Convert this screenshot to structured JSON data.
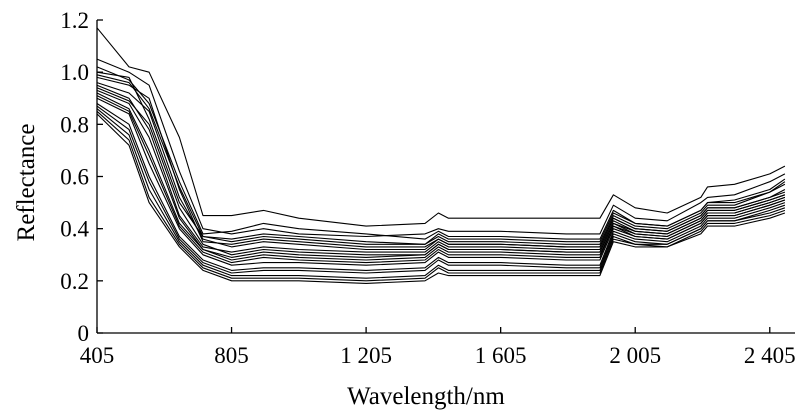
{
  "chart_data": {
    "type": "line",
    "title": "",
    "xlabel": "Wavelength/nm",
    "ylabel": "Reflectance",
    "xlim": [
      405,
      2480
    ],
    "ylim": [
      0,
      1.2
    ],
    "x_ticks": [
      405,
      805,
      1205,
      1605,
      2005,
      2405
    ],
    "x_tick_labels": [
      "405",
      "805",
      "1 205",
      "1 605",
      "2 005",
      "2 405"
    ],
    "y_ticks": [
      0,
      0.2,
      0.4,
      0.6,
      0.8,
      1.0,
      1.2
    ],
    "y_tick_labels": [
      "0",
      "0.2",
      "0.4",
      "0.6",
      "0.8",
      "1.0",
      "1.2"
    ],
    "grid": false,
    "legend": "none",
    "line_color": "#000000",
    "x": [
      405,
      500,
      560,
      650,
      720,
      805,
      900,
      1005,
      1205,
      1380,
      1420,
      1450,
      1605,
      1800,
      1900,
      1940,
      2005,
      2100,
      2200,
      2220,
      2300,
      2405,
      2450
    ],
    "series": [
      {
        "values": [
          1.17,
          1.02,
          1.0,
          0.75,
          0.45,
          0.45,
          0.47,
          0.44,
          0.41,
          0.42,
          0.46,
          0.44,
          0.44,
          0.44,
          0.44,
          0.53,
          0.48,
          0.46,
          0.52,
          0.56,
          0.57,
          0.61,
          0.64
        ]
      },
      {
        "values": [
          1.05,
          1.0,
          0.95,
          0.62,
          0.4,
          0.38,
          0.4,
          0.38,
          0.37,
          0.38,
          0.4,
          0.39,
          0.39,
          0.38,
          0.38,
          0.49,
          0.44,
          0.43,
          0.5,
          0.52,
          0.53,
          0.58,
          0.61
        ]
      },
      {
        "values": [
          1.0,
          0.98,
          0.82,
          0.5,
          0.37,
          0.36,
          0.38,
          0.37,
          0.35,
          0.34,
          0.37,
          0.35,
          0.35,
          0.34,
          0.34,
          0.45,
          0.41,
          0.4,
          0.46,
          0.49,
          0.49,
          0.54,
          0.58
        ]
      },
      {
        "values": [
          0.98,
          0.95,
          0.9,
          0.55,
          0.35,
          0.34,
          0.36,
          0.35,
          0.33,
          0.33,
          0.36,
          0.34,
          0.34,
          0.33,
          0.33,
          0.44,
          0.4,
          0.39,
          0.45,
          0.48,
          0.48,
          0.52,
          0.55
        ]
      },
      {
        "values": [
          0.95,
          0.9,
          0.78,
          0.45,
          0.33,
          0.31,
          0.33,
          0.32,
          0.31,
          0.31,
          0.35,
          0.33,
          0.33,
          0.32,
          0.32,
          0.43,
          0.39,
          0.38,
          0.44,
          0.47,
          0.47,
          0.51,
          0.53
        ]
      },
      {
        "values": [
          0.92,
          0.86,
          0.7,
          0.42,
          0.32,
          0.28,
          0.3,
          0.29,
          0.28,
          0.29,
          0.33,
          0.31,
          0.31,
          0.3,
          0.3,
          0.41,
          0.38,
          0.37,
          0.43,
          0.46,
          0.46,
          0.5,
          0.52
        ]
      },
      {
        "values": [
          0.9,
          0.84,
          0.65,
          0.4,
          0.3,
          0.26,
          0.27,
          0.27,
          0.26,
          0.27,
          0.31,
          0.29,
          0.29,
          0.28,
          0.28,
          0.4,
          0.37,
          0.36,
          0.42,
          0.45,
          0.45,
          0.49,
          0.51
        ]
      },
      {
        "values": [
          0.88,
          0.8,
          0.6,
          0.37,
          0.28,
          0.24,
          0.25,
          0.25,
          0.24,
          0.25,
          0.29,
          0.27,
          0.27,
          0.26,
          0.26,
          0.39,
          0.36,
          0.35,
          0.41,
          0.44,
          0.44,
          0.48,
          0.5
        ]
      },
      {
        "values": [
          0.86,
          0.76,
          0.55,
          0.35,
          0.26,
          0.22,
          0.22,
          0.22,
          0.21,
          0.22,
          0.26,
          0.24,
          0.24,
          0.24,
          0.24,
          0.37,
          0.34,
          0.34,
          0.4,
          0.43,
          0.43,
          0.46,
          0.48
        ]
      },
      {
        "values": [
          0.84,
          0.72,
          0.5,
          0.33,
          0.24,
          0.2,
          0.2,
          0.2,
          0.19,
          0.2,
          0.23,
          0.22,
          0.22,
          0.22,
          0.22,
          0.35,
          0.33,
          0.33,
          0.38,
          0.41,
          0.41,
          0.44,
          0.46
        ]
      },
      {
        "values": [
          1.02,
          0.97,
          0.88,
          0.58,
          0.38,
          0.39,
          0.42,
          0.4,
          0.38,
          0.36,
          0.39,
          0.37,
          0.37,
          0.36,
          0.36,
          0.47,
          0.42,
          0.41,
          0.47,
          0.5,
          0.51,
          0.55,
          0.59
        ]
      },
      {
        "values": [
          0.96,
          0.92,
          0.85,
          0.52,
          0.36,
          0.33,
          0.35,
          0.34,
          0.32,
          0.32,
          0.36,
          0.34,
          0.34,
          0.33,
          0.33,
          0.44,
          0.4,
          0.39,
          0.45,
          0.48,
          0.48,
          0.52,
          0.54
        ]
      },
      {
        "values": [
          0.93,
          0.88,
          0.75,
          0.44,
          0.32,
          0.29,
          0.31,
          0.3,
          0.29,
          0.3,
          0.34,
          0.32,
          0.32,
          0.31,
          0.31,
          0.42,
          0.38,
          0.37,
          0.43,
          0.46,
          0.46,
          0.5,
          0.52
        ]
      },
      {
        "values": [
          0.91,
          0.85,
          0.68,
          0.41,
          0.31,
          0.27,
          0.29,
          0.28,
          0.27,
          0.28,
          0.32,
          0.3,
          0.3,
          0.29,
          0.29,
          0.41,
          0.37,
          0.36,
          0.42,
          0.45,
          0.45,
          0.49,
          0.51
        ]
      },
      {
        "values": [
          0.87,
          0.78,
          0.58,
          0.36,
          0.27,
          0.23,
          0.24,
          0.24,
          0.23,
          0.24,
          0.28,
          0.26,
          0.26,
          0.25,
          0.25,
          0.38,
          0.35,
          0.34,
          0.4,
          0.43,
          0.43,
          0.47,
          0.49
        ]
      },
      {
        "values": [
          0.85,
          0.74,
          0.52,
          0.34,
          0.25,
          0.21,
          0.21,
          0.21,
          0.2,
          0.21,
          0.25,
          0.23,
          0.23,
          0.23,
          0.23,
          0.36,
          0.34,
          0.33,
          0.39,
          0.42,
          0.42,
          0.45,
          0.47
        ]
      },
      {
        "values": [
          0.99,
          0.96,
          0.86,
          0.56,
          0.37,
          0.35,
          0.37,
          0.36,
          0.34,
          0.34,
          0.38,
          0.36,
          0.36,
          0.35,
          0.35,
          0.46,
          0.42,
          0.41,
          0.47,
          0.5,
          0.5,
          0.54,
          0.57
        ]
      },
      {
        "values": [
          0.94,
          0.89,
          0.8,
          0.48,
          0.34,
          0.3,
          0.32,
          0.31,
          0.3,
          0.3,
          0.34,
          0.32,
          0.32,
          0.31,
          0.31,
          0.42,
          0.39,
          0.38,
          0.44,
          0.47,
          0.47,
          0.51,
          0.53
        ]
      }
    ]
  }
}
